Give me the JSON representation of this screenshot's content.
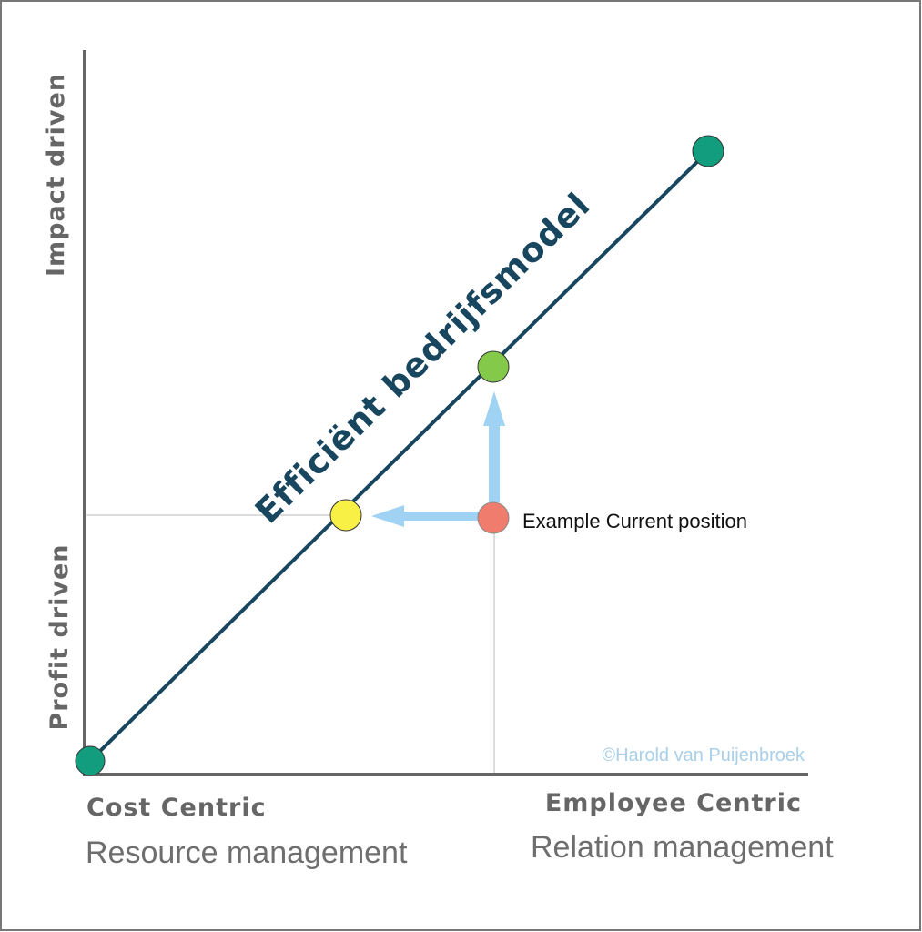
{
  "diagram": {
    "title": "Efficiënt bedrijfsmodel",
    "y_axis": {
      "top_label": "Impact driven",
      "bottom_label": "Profit driven"
    },
    "x_axis": {
      "left_title": "Cost Centric",
      "left_subtitle": "Resource management",
      "right_title": "Employee Centric",
      "right_subtitle": "Relation management"
    },
    "annotation": "Example Current position",
    "copyright": "©Harold van Puijenbroek",
    "points": [
      {
        "name": "origin",
        "color": "#129e7e"
      },
      {
        "name": "target-horizontal",
        "color": "#f8f045"
      },
      {
        "name": "target-vertical",
        "color": "#85c94b"
      },
      {
        "name": "top-end",
        "color": "#129e7e"
      },
      {
        "name": "current-position",
        "color": "#ef7c6c"
      }
    ],
    "colors": {
      "axis": "#666666",
      "diagonal": "#17465e",
      "arrow": "#9fd2f3",
      "guide": "#dcdcdc",
      "frame": "#777777"
    }
  }
}
